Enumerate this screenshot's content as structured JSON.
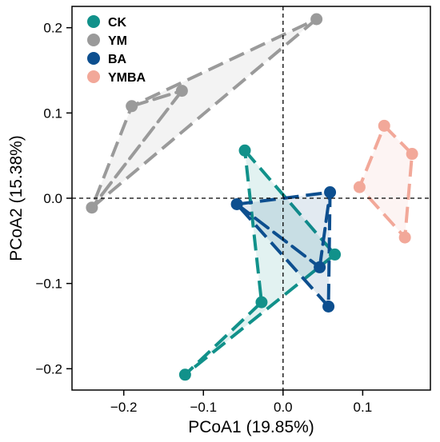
{
  "chart_data": {
    "type": "scatter",
    "xlabel": "PCoA1 (19.85%)",
    "ylabel": "PCoA2 (15.38%)",
    "xlim": [
      -0.265,
      0.185
    ],
    "ylim": [
      -0.225,
      0.225
    ],
    "xticks": [
      -0.2,
      -0.1,
      0.0,
      0.1
    ],
    "xtick_labels": [
      "−0.2",
      "−0.1",
      "0.0",
      "0.1"
    ],
    "yticks": [
      -0.2,
      -0.1,
      0.0,
      0.1,
      0.2
    ],
    "ytick_labels": [
      "−0.2",
      "−0.1",
      "0.0",
      "0.1",
      "0.2"
    ],
    "reference_lines": {
      "x": 0,
      "y": 0,
      "style": "dashed"
    },
    "grid": false,
    "legend_position": "top-left",
    "series": [
      {
        "name": "CK",
        "color": "#11918a",
        "points": [
          [
            -0.048,
            0.056
          ],
          [
            0.065,
            -0.066
          ],
          [
            -0.027,
            -0.122
          ],
          [
            -0.123,
            -0.207
          ]
        ],
        "hull": [
          [
            -0.048,
            0.056
          ],
          [
            0.065,
            -0.066
          ],
          [
            -0.123,
            -0.207
          ],
          [
            -0.027,
            -0.122
          ]
        ],
        "extra_segments": []
      },
      {
        "name": "YM",
        "color": "#9a9a9a",
        "points": [
          [
            0.042,
            0.21
          ],
          [
            -0.127,
            0.126
          ],
          [
            -0.19,
            0.108
          ],
          [
            -0.24,
            -0.011
          ]
        ],
        "hull": [
          [
            0.042,
            0.21
          ],
          [
            -0.24,
            -0.011
          ],
          [
            -0.19,
            0.108
          ]
        ],
        "extra_segments": [
          [
            [
              -0.19,
              0.108
            ],
            [
              -0.127,
              0.126
            ]
          ],
          [
            [
              -0.127,
              0.126
            ],
            [
              -0.24,
              -0.011
            ]
          ]
        ]
      },
      {
        "name": "BA",
        "color": "#0d4f8f",
        "points": [
          [
            -0.058,
            -0.007
          ],
          [
            0.059,
            0.007
          ],
          [
            0.046,
            -0.081
          ],
          [
            0.057,
            -0.127
          ]
        ],
        "hull": [
          [
            -0.058,
            -0.007
          ],
          [
            0.059,
            0.007
          ],
          [
            0.057,
            -0.127
          ]
        ],
        "extra_segments": [
          [
            [
              -0.058,
              -0.007
            ],
            [
              0.046,
              -0.081
            ]
          ],
          [
            [
              0.046,
              -0.081
            ],
            [
              0.059,
              0.007
            ]
          ]
        ]
      },
      {
        "name": "YMBA",
        "color": "#f2a899",
        "points": [
          [
            0.127,
            0.085
          ],
          [
            0.162,
            0.052
          ],
          [
            0.096,
            0.013
          ],
          [
            0.153,
            -0.046
          ]
        ],
        "hull": [
          [
            0.127,
            0.085
          ],
          [
            0.162,
            0.052
          ],
          [
            0.153,
            -0.046
          ],
          [
            0.096,
            0.013
          ]
        ],
        "extra_segments": []
      }
    ]
  }
}
